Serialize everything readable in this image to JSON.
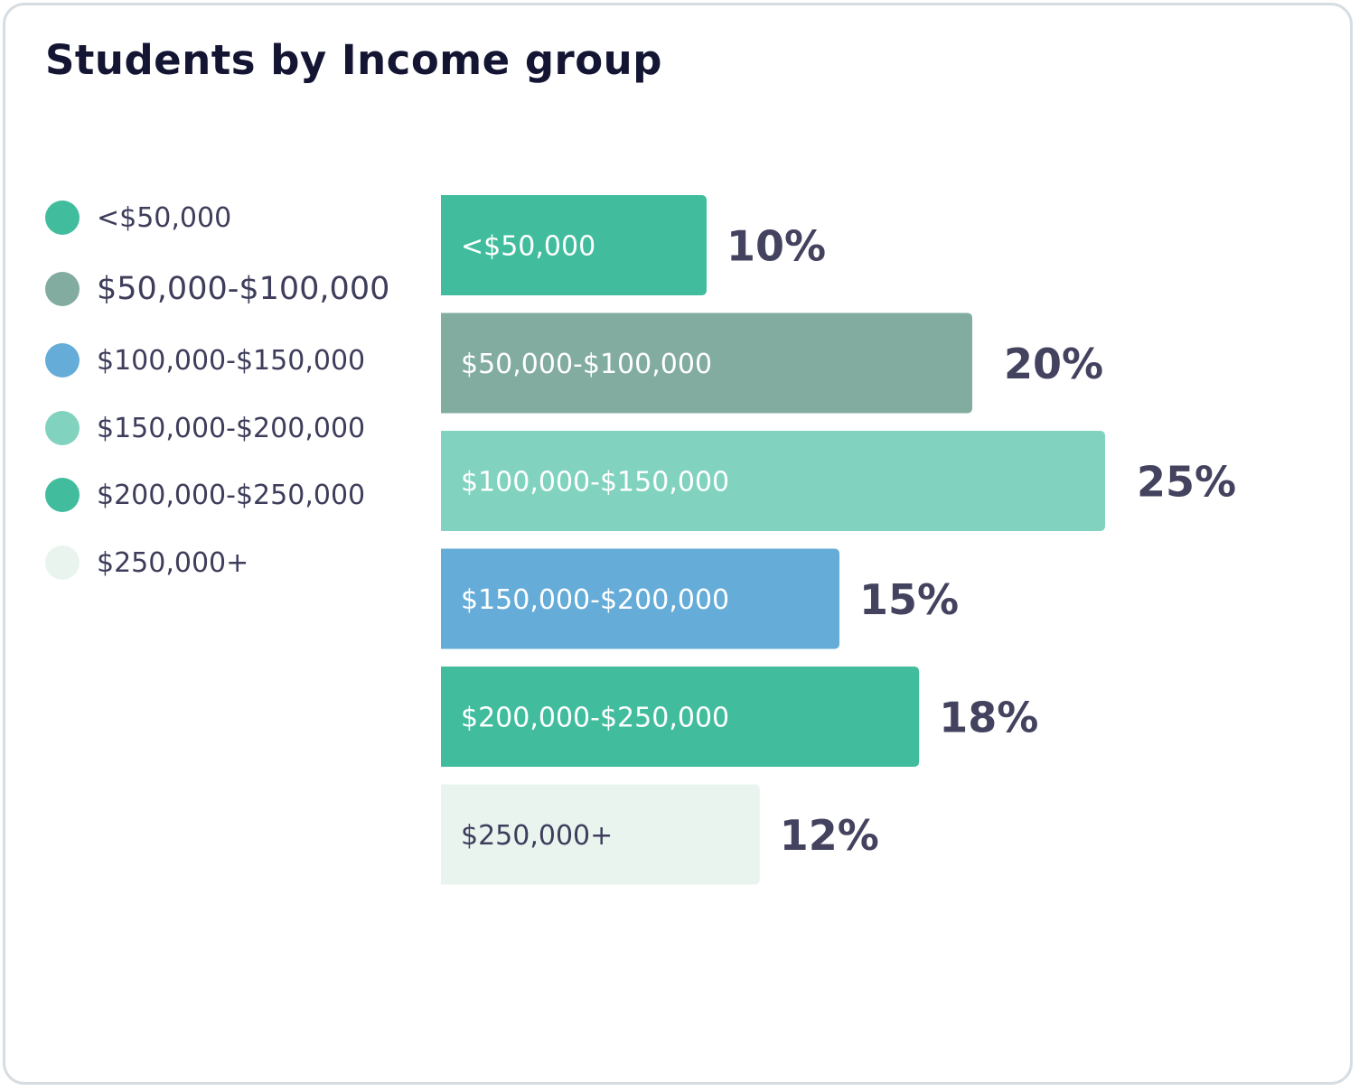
{
  "title": "Students by Income group",
  "legend": [
    {
      "label": "<$50,000",
      "color": "#41bd9e"
    },
    {
      "label": "$50,000-$100,000",
      "color": "#82ac9f"
    },
    {
      "label": "$100,000-$150,000",
      "color": "#65acd9"
    },
    {
      "label": "$150,000-$200,000",
      "color": "#81d3bf"
    },
    {
      "label": "$200,000-$250,000",
      "color": "#41bd9e"
    },
    {
      "label": "$250,000+",
      "color": "#eaf4ee"
    }
  ],
  "chart_data": {
    "type": "bar",
    "orientation": "horizontal",
    "title": "Students by Income group",
    "unit": "%",
    "categories": [
      "<$50,000",
      "$50,000-$100,000",
      "$100,000-$150,000",
      "$150,000-$200,000",
      "$200,000-$250,000",
      "$250,000+"
    ],
    "values": [
      10,
      20,
      25,
      15,
      18,
      12
    ],
    "value_labels": [
      "10%",
      "20%",
      "25%",
      "15%",
      "18%",
      "12%"
    ],
    "bar_colors": [
      "#41bd9e",
      "#82ac9f",
      "#81d3bf",
      "#65acd9",
      "#41bd9e",
      "#eaf4ee"
    ],
    "bar_label_colors": [
      "#ffffff",
      "#ffffff",
      "#ffffff",
      "#ffffff",
      "#ffffff",
      "#3e3e5c"
    ],
    "legend_position": "left",
    "grid": false
  }
}
